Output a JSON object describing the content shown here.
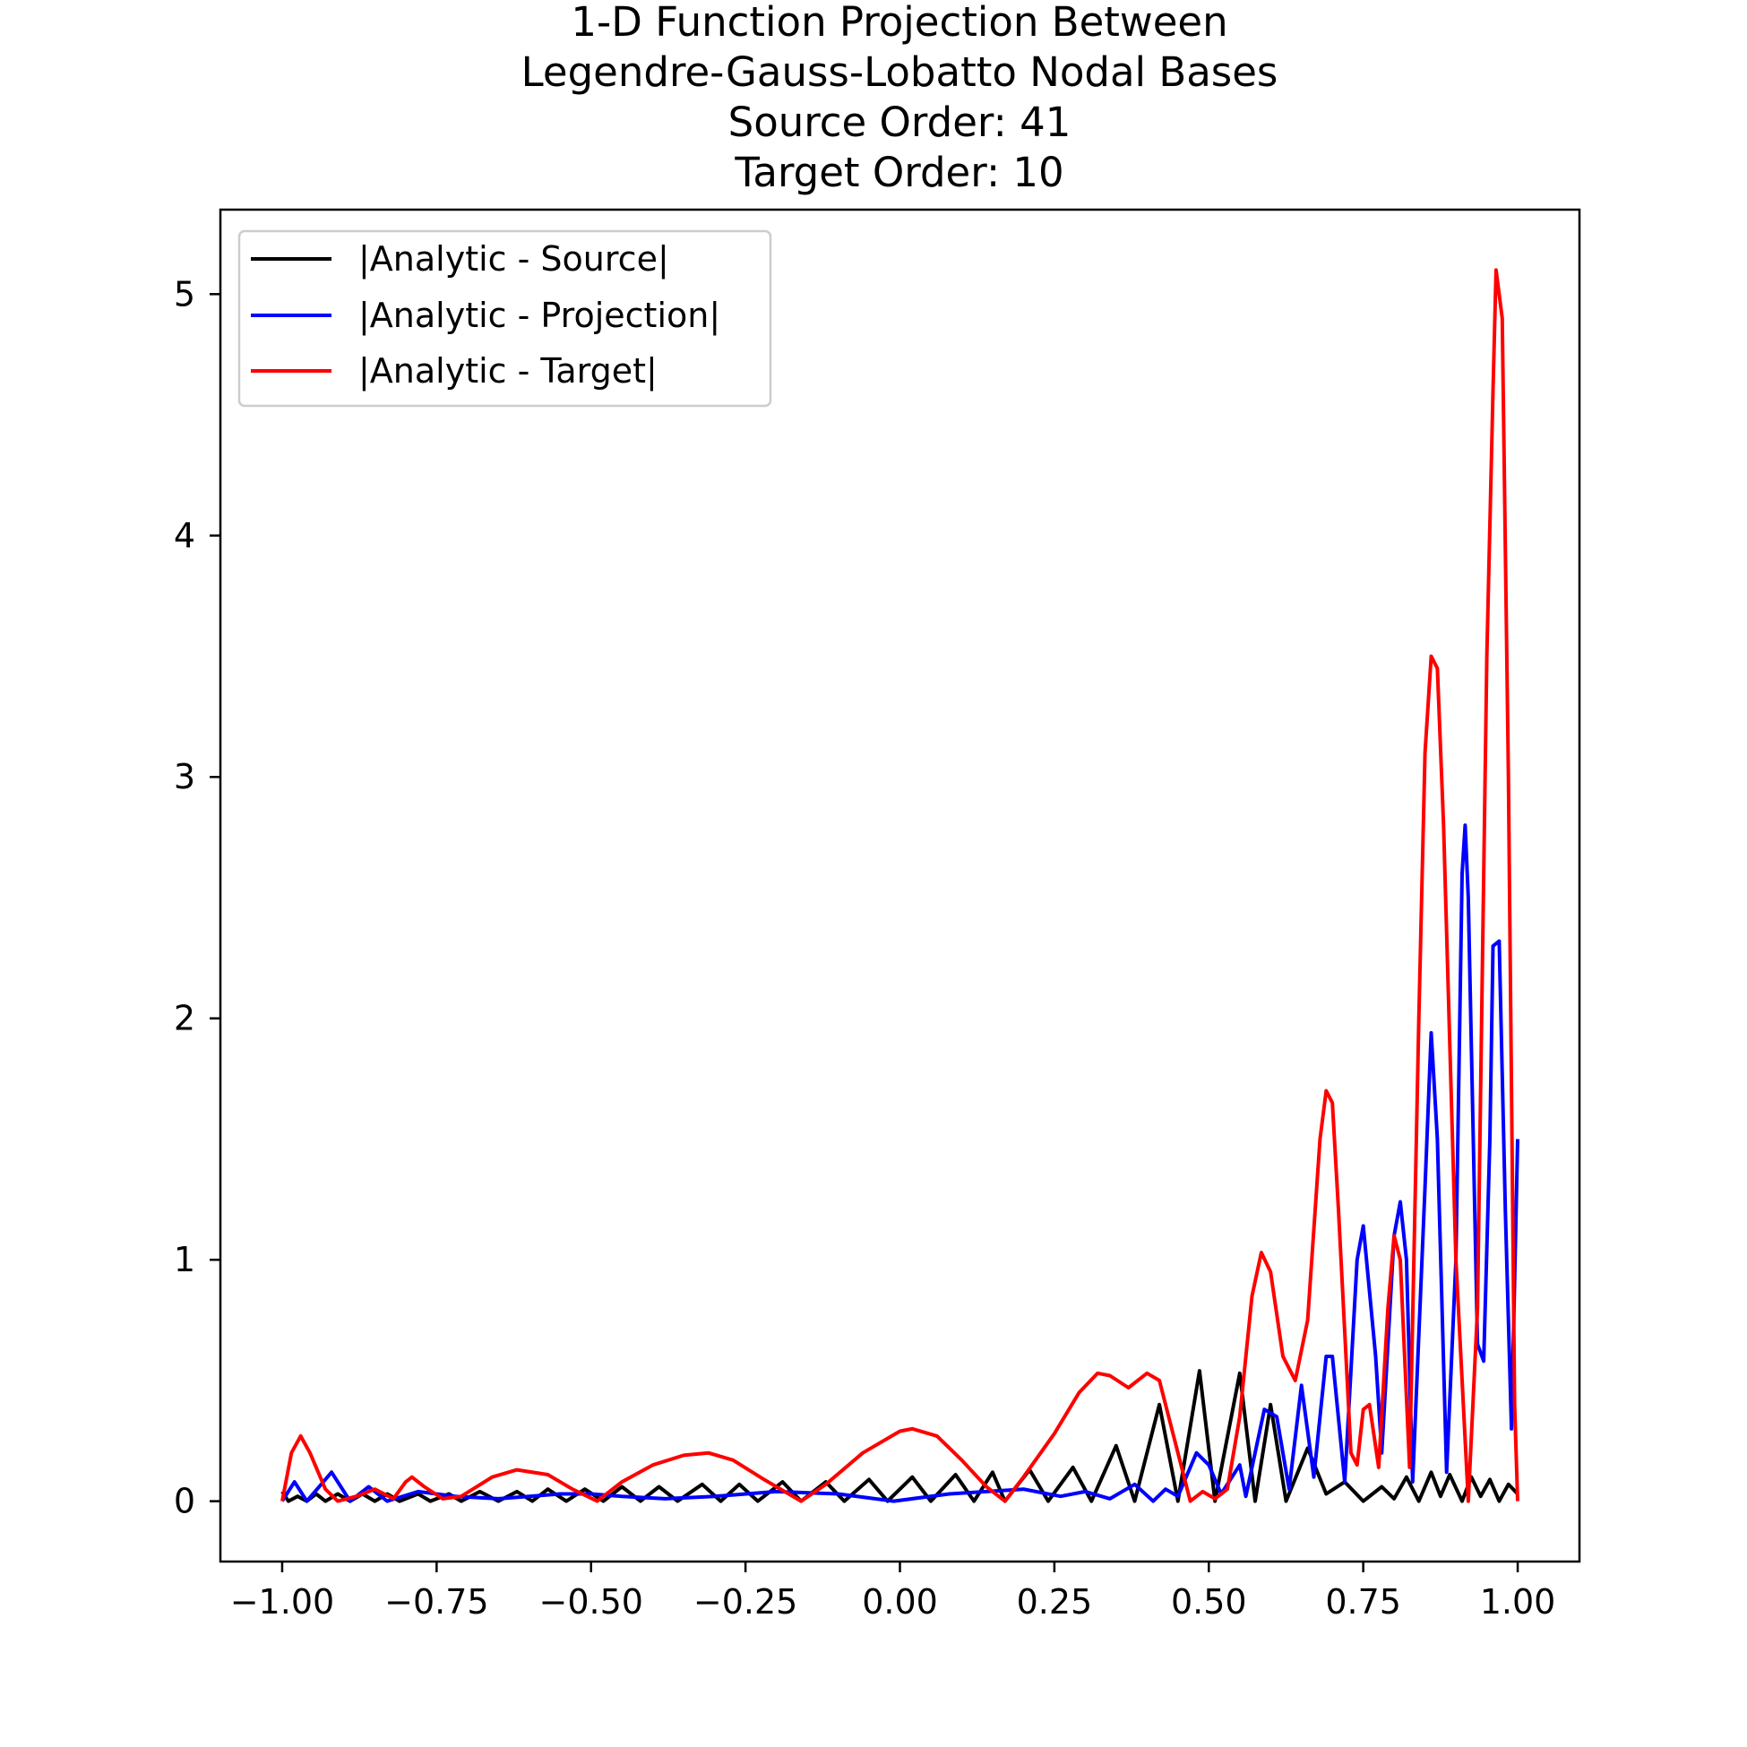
{
  "chart_data": {
    "type": "line",
    "title_lines": [
      "1-D Function Projection Between",
      "Legendre-Gauss-Lobatto Nodal Bases",
      "Source Order: 41",
      "Target Order: 10"
    ],
    "xlabel": "",
    "ylabel": "",
    "xlim": [
      -1.1,
      1.1
    ],
    "ylim": [
      -0.25,
      5.35
    ],
    "x_ticks": [
      -1.0,
      -0.75,
      -0.5,
      -0.25,
      0.0,
      0.25,
      0.5,
      0.75,
      1.0
    ],
    "x_tick_labels": [
      "−1.00",
      "−0.75",
      "−0.50",
      "−0.25",
      "0.00",
      "0.25",
      "0.50",
      "0.75",
      "1.00"
    ],
    "y_ticks": [
      0,
      1,
      2,
      3,
      4,
      5
    ],
    "y_tick_labels": [
      "0",
      "1",
      "2",
      "3",
      "4",
      "5"
    ],
    "grid": false,
    "legend_position": "upper-left",
    "series": [
      {
        "name": "|Analytic - Source|",
        "color": "#000000",
        "points": [
          [
            -1.0,
            0.04
          ],
          [
            -0.99,
            0.0
          ],
          [
            -0.975,
            0.02
          ],
          [
            -0.96,
            0.0
          ],
          [
            -0.945,
            0.03
          ],
          [
            -0.93,
            0.0
          ],
          [
            -0.91,
            0.03
          ],
          [
            -0.89,
            0.0
          ],
          [
            -0.87,
            0.03
          ],
          [
            -0.85,
            0.0
          ],
          [
            -0.83,
            0.03
          ],
          [
            -0.81,
            0.0
          ],
          [
            -0.78,
            0.03
          ],
          [
            -0.76,
            0.0
          ],
          [
            -0.73,
            0.03
          ],
          [
            -0.71,
            0.0
          ],
          [
            -0.68,
            0.04
          ],
          [
            -0.65,
            0.0
          ],
          [
            -0.62,
            0.04
          ],
          [
            -0.595,
            0.0
          ],
          [
            -0.57,
            0.05
          ],
          [
            -0.54,
            0.0
          ],
          [
            -0.51,
            0.05
          ],
          [
            -0.48,
            0.0
          ],
          [
            -0.45,
            0.06
          ],
          [
            -0.42,
            0.0
          ],
          [
            -0.39,
            0.06
          ],
          [
            -0.36,
            0.0
          ],
          [
            -0.32,
            0.07
          ],
          [
            -0.29,
            0.0
          ],
          [
            -0.26,
            0.07
          ],
          [
            -0.23,
            0.0
          ],
          [
            -0.19,
            0.08
          ],
          [
            -0.16,
            0.0
          ],
          [
            -0.12,
            0.08
          ],
          [
            -0.09,
            0.0
          ],
          [
            -0.05,
            0.09
          ],
          [
            -0.02,
            0.0
          ],
          [
            0.02,
            0.1
          ],
          [
            0.05,
            0.0
          ],
          [
            0.09,
            0.11
          ],
          [
            0.12,
            0.0
          ],
          [
            0.15,
            0.12
          ],
          [
            0.17,
            0.0
          ],
          [
            0.21,
            0.13
          ],
          [
            0.24,
            0.0
          ],
          [
            0.28,
            0.14
          ],
          [
            0.31,
            0.0
          ],
          [
            0.35,
            0.23
          ],
          [
            0.38,
            0.0
          ],
          [
            0.42,
            0.4
          ],
          [
            0.45,
            0.0
          ],
          [
            0.485,
            0.54
          ],
          [
            0.51,
            0.0
          ],
          [
            0.55,
            0.53
          ],
          [
            0.575,
            0.0
          ],
          [
            0.6,
            0.4
          ],
          [
            0.625,
            0.0
          ],
          [
            0.66,
            0.22
          ],
          [
            0.69,
            0.03
          ],
          [
            0.72,
            0.08
          ],
          [
            0.75,
            0.0
          ],
          [
            0.78,
            0.06
          ],
          [
            0.8,
            0.01
          ],
          [
            0.82,
            0.1
          ],
          [
            0.84,
            0.0
          ],
          [
            0.86,
            0.12
          ],
          [
            0.875,
            0.02
          ],
          [
            0.89,
            0.11
          ],
          [
            0.91,
            0.0
          ],
          [
            0.925,
            0.1
          ],
          [
            0.94,
            0.02
          ],
          [
            0.955,
            0.09
          ],
          [
            0.97,
            0.0
          ],
          [
            0.985,
            0.07
          ],
          [
            1.0,
            0.03
          ]
        ]
      },
      {
        "name": "|Analytic - Projection|",
        "color": "#0000ff",
        "points": [
          [
            -1.0,
            0.0
          ],
          [
            -0.98,
            0.08
          ],
          [
            -0.96,
            0.0
          ],
          [
            -0.92,
            0.12
          ],
          [
            -0.89,
            0.0
          ],
          [
            -0.86,
            0.06
          ],
          [
            -0.83,
            0.0
          ],
          [
            -0.78,
            0.04
          ],
          [
            -0.72,
            0.02
          ],
          [
            -0.65,
            0.01
          ],
          [
            -0.6,
            0.02
          ],
          [
            -0.55,
            0.03
          ],
          [
            -0.5,
            0.03
          ],
          [
            -0.45,
            0.02
          ],
          [
            -0.38,
            0.01
          ],
          [
            -0.3,
            0.02
          ],
          [
            -0.2,
            0.04
          ],
          [
            -0.1,
            0.03
          ],
          [
            -0.01,
            0.0
          ],
          [
            0.08,
            0.03
          ],
          [
            0.2,
            0.05
          ],
          [
            0.26,
            0.02
          ],
          [
            0.3,
            0.04
          ],
          [
            0.34,
            0.01
          ],
          [
            0.38,
            0.07
          ],
          [
            0.41,
            0.0
          ],
          [
            0.43,
            0.05
          ],
          [
            0.45,
            0.02
          ],
          [
            0.48,
            0.2
          ],
          [
            0.5,
            0.15
          ],
          [
            0.52,
            0.03
          ],
          [
            0.55,
            0.15
          ],
          [
            0.56,
            0.02
          ],
          [
            0.59,
            0.38
          ],
          [
            0.61,
            0.35
          ],
          [
            0.63,
            0.05
          ],
          [
            0.65,
            0.48
          ],
          [
            0.67,
            0.1
          ],
          [
            0.69,
            0.6
          ],
          [
            0.7,
            0.6
          ],
          [
            0.72,
            0.08
          ],
          [
            0.74,
            1.0
          ],
          [
            0.75,
            1.14
          ],
          [
            0.77,
            0.6
          ],
          [
            0.78,
            0.2
          ],
          [
            0.8,
            1.1
          ],
          [
            0.81,
            1.24
          ],
          [
            0.82,
            1.0
          ],
          [
            0.83,
            0.08
          ],
          [
            0.85,
            1.3
          ],
          [
            0.86,
            1.94
          ],
          [
            0.87,
            1.5
          ],
          [
            0.885,
            0.12
          ],
          [
            0.9,
            1.0
          ],
          [
            0.91,
            2.6
          ],
          [
            0.915,
            2.8
          ],
          [
            0.92,
            2.5
          ],
          [
            0.935,
            0.65
          ],
          [
            0.945,
            0.58
          ],
          [
            0.955,
            1.5
          ],
          [
            0.96,
            2.3
          ],
          [
            0.97,
            2.32
          ],
          [
            0.98,
            1.2
          ],
          [
            0.99,
            0.3
          ],
          [
            1.0,
            1.5
          ]
        ]
      },
      {
        "name": "|Analytic - Target|",
        "color": "#ff0000",
        "points": [
          [
            -1.0,
            0.0
          ],
          [
            -0.985,
            0.2
          ],
          [
            -0.97,
            0.27
          ],
          [
            -0.955,
            0.2
          ],
          [
            -0.93,
            0.05
          ],
          [
            -0.91,
            0.0
          ],
          [
            -0.88,
            0.02
          ],
          [
            -0.85,
            0.05
          ],
          [
            -0.82,
            0.01
          ],
          [
            -0.8,
            0.08
          ],
          [
            -0.79,
            0.1
          ],
          [
            -0.77,
            0.06
          ],
          [
            -0.74,
            0.01
          ],
          [
            -0.71,
            0.02
          ],
          [
            -0.66,
            0.1
          ],
          [
            -0.62,
            0.13
          ],
          [
            -0.57,
            0.11
          ],
          [
            -0.53,
            0.05
          ],
          [
            -0.49,
            0.0
          ],
          [
            -0.45,
            0.08
          ],
          [
            -0.4,
            0.15
          ],
          [
            -0.35,
            0.19
          ],
          [
            -0.31,
            0.2
          ],
          [
            -0.27,
            0.17
          ],
          [
            -0.22,
            0.09
          ],
          [
            -0.16,
            0.0
          ],
          [
            -0.12,
            0.07
          ],
          [
            -0.06,
            0.2
          ],
          [
            0.0,
            0.29
          ],
          [
            0.02,
            0.3
          ],
          [
            0.06,
            0.27
          ],
          [
            0.1,
            0.17
          ],
          [
            0.14,
            0.06
          ],
          [
            0.17,
            0.0
          ],
          [
            0.2,
            0.1
          ],
          [
            0.25,
            0.28
          ],
          [
            0.29,
            0.45
          ],
          [
            0.32,
            0.53
          ],
          [
            0.34,
            0.52
          ],
          [
            0.37,
            0.47
          ],
          [
            0.4,
            0.53
          ],
          [
            0.42,
            0.5
          ],
          [
            0.44,
            0.3
          ],
          [
            0.47,
            0.0
          ],
          [
            0.49,
            0.04
          ],
          [
            0.51,
            0.01
          ],
          [
            0.53,
            0.05
          ],
          [
            0.55,
            0.35
          ],
          [
            0.57,
            0.85
          ],
          [
            0.585,
            1.03
          ],
          [
            0.6,
            0.95
          ],
          [
            0.62,
            0.6
          ],
          [
            0.64,
            0.5
          ],
          [
            0.66,
            0.75
          ],
          [
            0.68,
            1.5
          ],
          [
            0.69,
            1.7
          ],
          [
            0.7,
            1.65
          ],
          [
            0.71,
            1.2
          ],
          [
            0.73,
            0.2
          ],
          [
            0.74,
            0.15
          ],
          [
            0.75,
            0.38
          ],
          [
            0.76,
            0.4
          ],
          [
            0.775,
            0.14
          ],
          [
            0.79,
            0.8
          ],
          [
            0.8,
            1.1
          ],
          [
            0.81,
            1.0
          ],
          [
            0.825,
            0.14
          ],
          [
            0.84,
            2.0
          ],
          [
            0.85,
            3.1
          ],
          [
            0.86,
            3.5
          ],
          [
            0.87,
            3.45
          ],
          [
            0.88,
            2.8
          ],
          [
            0.9,
            1.0
          ],
          [
            0.92,
            0.0
          ],
          [
            0.935,
            0.8
          ],
          [
            0.95,
            3.5
          ],
          [
            0.96,
            4.6
          ],
          [
            0.965,
            5.1
          ],
          [
            0.975,
            4.9
          ],
          [
            0.985,
            3.0
          ],
          [
            0.995,
            0.4
          ],
          [
            1.0,
            0.0
          ]
        ]
      }
    ]
  }
}
